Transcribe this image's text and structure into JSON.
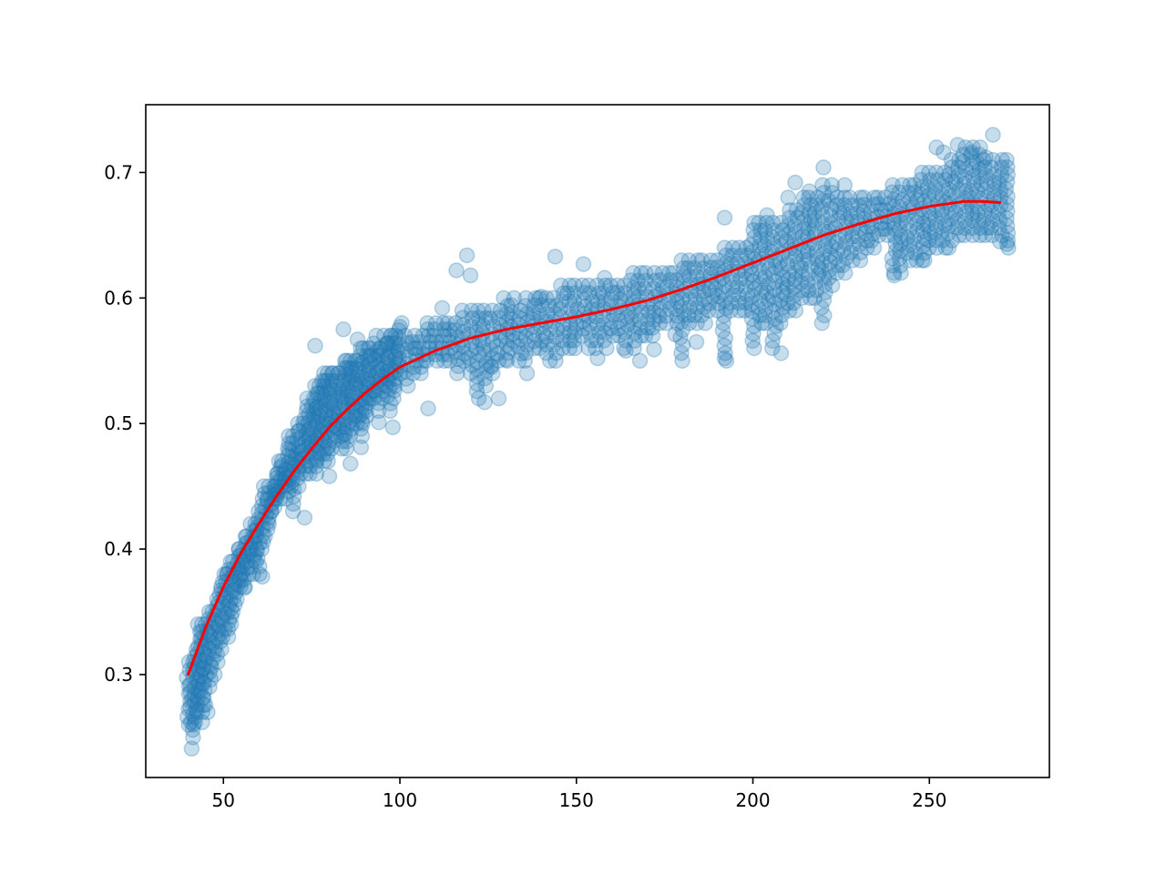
{
  "chart_data": {
    "type": "scatter",
    "title": "",
    "xlabel": "",
    "ylabel": "",
    "xlim": [
      28,
      284
    ],
    "ylim": [
      0.218,
      0.754
    ],
    "xticks": [
      50,
      100,
      150,
      200,
      250
    ],
    "yticks": [
      0.3,
      0.4,
      0.5,
      0.6,
      0.7
    ],
    "xtick_labels": [
      "50",
      "100",
      "150",
      "200",
      "250"
    ],
    "ytick_labels": [
      "0.3",
      "0.4",
      "0.5",
      "0.6",
      "0.7"
    ],
    "grid": false,
    "legend": "none",
    "series": [
      {
        "kind": "scatter",
        "color": "#1f77b4",
        "alpha": 0.25,
        "x_columns": [
          40,
          41,
          42,
          43,
          44,
          45,
          46,
          47,
          48,
          49,
          50,
          51,
          52,
          53,
          54,
          55,
          56,
          57,
          58,
          59,
          60,
          61,
          62,
          63,
          64,
          65,
          66,
          67,
          68,
          69,
          70,
          71,
          72,
          73,
          74,
          75,
          76,
          77,
          78,
          79,
          80,
          81,
          82,
          83,
          84,
          85,
          86,
          87,
          88,
          89,
          90,
          91,
          92,
          93,
          94,
          95,
          96,
          97,
          98,
          99,
          100,
          102,
          104,
          106,
          108,
          110,
          112,
          114,
          116,
          118,
          120,
          122,
          124,
          126,
          128,
          130,
          132,
          134,
          136,
          138,
          140,
          142,
          144,
          146,
          148,
          150,
          152,
          154,
          156,
          158,
          160,
          162,
          164,
          166,
          168,
          170,
          172,
          174,
          176,
          178,
          180,
          182,
          184,
          186,
          188,
          190,
          192,
          194,
          196,
          198,
          200,
          202,
          204,
          206,
          208,
          210,
          212,
          214,
          216,
          218,
          220,
          222,
          224,
          226,
          228,
          230,
          232,
          234,
          236,
          238,
          240,
          242,
          244,
          246,
          248,
          250,
          252,
          254,
          256,
          258,
          260,
          262,
          264,
          266,
          268,
          270,
          272
        ],
        "y_low": [
          0.26,
          0.25,
          0.26,
          0.27,
          0.27,
          0.27,
          0.29,
          0.3,
          0.31,
          0.32,
          0.33,
          0.33,
          0.34,
          0.35,
          0.36,
          0.37,
          0.37,
          0.38,
          0.38,
          0.39,
          0.38,
          0.4,
          0.41,
          0.42,
          0.43,
          0.44,
          0.44,
          0.45,
          0.44,
          0.45,
          0.43,
          0.45,
          0.46,
          0.46,
          0.47,
          0.46,
          0.46,
          0.47,
          0.47,
          0.48,
          0.47,
          0.48,
          0.49,
          0.49,
          0.48,
          0.48,
          0.49,
          0.5,
          0.5,
          0.49,
          0.5,
          0.51,
          0.52,
          0.52,
          0.51,
          0.52,
          0.53,
          0.51,
          0.52,
          0.53,
          0.54,
          0.53,
          0.54,
          0.54,
          0.55,
          0.55,
          0.55,
          0.55,
          0.54,
          0.55,
          0.54,
          0.52,
          0.53,
          0.54,
          0.55,
          0.55,
          0.56,
          0.55,
          0.55,
          0.56,
          0.56,
          0.55,
          0.55,
          0.56,
          0.56,
          0.56,
          0.57,
          0.56,
          0.56,
          0.56,
          0.57,
          0.57,
          0.56,
          0.56,
          0.57,
          0.57,
          0.57,
          0.58,
          0.58,
          0.58,
          0.55,
          0.58,
          0.58,
          0.58,
          0.59,
          0.59,
          0.55,
          0.59,
          0.59,
          0.59,
          0.56,
          0.58,
          0.58,
          0.56,
          0.58,
          0.59,
          0.59,
          0.6,
          0.6,
          0.6,
          0.58,
          0.61,
          0.62,
          0.62,
          0.63,
          0.63,
          0.64,
          0.64,
          0.65,
          0.65,
          0.62,
          0.62,
          0.63,
          0.63,
          0.63,
          0.64,
          0.64,
          0.64,
          0.64,
          0.65,
          0.65,
          0.65,
          0.65,
          0.65,
          0.65,
          0.65,
          0.64
        ],
        "y_high": [
          0.31,
          0.31,
          0.32,
          0.34,
          0.34,
          0.34,
          0.35,
          0.35,
          0.36,
          0.37,
          0.38,
          0.38,
          0.39,
          0.39,
          0.4,
          0.4,
          0.41,
          0.41,
          0.42,
          0.42,
          0.43,
          0.44,
          0.45,
          0.45,
          0.45,
          0.46,
          0.47,
          0.47,
          0.48,
          0.49,
          0.49,
          0.5,
          0.5,
          0.51,
          0.52,
          0.52,
          0.53,
          0.53,
          0.53,
          0.54,
          0.54,
          0.54,
          0.54,
          0.54,
          0.55,
          0.55,
          0.55,
          0.55,
          0.55,
          0.56,
          0.56,
          0.56,
          0.56,
          0.57,
          0.56,
          0.56,
          0.57,
          0.57,
          0.57,
          0.57,
          0.58,
          0.57,
          0.57,
          0.57,
          0.58,
          0.58,
          0.58,
          0.58,
          0.58,
          0.59,
          0.59,
          0.59,
          0.59,
          0.59,
          0.59,
          0.6,
          0.6,
          0.59,
          0.6,
          0.6,
          0.6,
          0.6,
          0.6,
          0.61,
          0.61,
          0.61,
          0.61,
          0.61,
          0.61,
          0.61,
          0.61,
          0.61,
          0.61,
          0.62,
          0.62,
          0.62,
          0.62,
          0.62,
          0.62,
          0.62,
          0.63,
          0.63,
          0.63,
          0.63,
          0.63,
          0.63,
          0.64,
          0.64,
          0.64,
          0.64,
          0.66,
          0.66,
          0.66,
          0.66,
          0.66,
          0.67,
          0.67,
          0.68,
          0.68,
          0.68,
          0.69,
          0.69,
          0.68,
          0.68,
          0.68,
          0.68,
          0.68,
          0.68,
          0.68,
          0.68,
          0.69,
          0.69,
          0.69,
          0.69,
          0.7,
          0.7,
          0.7,
          0.7,
          0.71,
          0.71,
          0.72,
          0.72,
          0.72,
          0.71,
          0.71,
          0.71,
          0.71
        ],
        "outliers": [
          [
            41,
            0.241
          ],
          [
            42,
            0.262
          ],
          [
            44,
            0.262
          ],
          [
            51,
            0.38
          ],
          [
            56,
            0.369
          ],
          [
            61,
            0.378
          ],
          [
            73,
            0.425
          ],
          [
            76,
            0.562
          ],
          [
            78,
            0.534
          ],
          [
            80,
            0.458
          ],
          [
            81,
            0.54
          ],
          [
            84,
            0.575
          ],
          [
            86,
            0.468
          ],
          [
            88,
            0.567
          ],
          [
            89,
            0.481
          ],
          [
            94,
            0.501
          ],
          [
            96,
            0.563
          ],
          [
            98,
            0.497
          ],
          [
            100,
            0.577
          ],
          [
            104,
            0.56
          ],
          [
            108,
            0.512
          ],
          [
            112,
            0.592
          ],
          [
            116,
            0.622
          ],
          [
            119,
            0.634
          ],
          [
            120,
            0.618
          ],
          [
            124,
            0.517
          ],
          [
            126,
            0.545
          ],
          [
            128,
            0.52
          ],
          [
            130,
            0.551
          ],
          [
            136,
            0.54
          ],
          [
            140,
            0.601
          ],
          [
            144,
            0.633
          ],
          [
            152,
            0.627
          ],
          [
            156,
            0.552
          ],
          [
            158,
            0.616
          ],
          [
            164,
            0.558
          ],
          [
            168,
            0.55
          ],
          [
            172,
            0.559
          ],
          [
            178,
            0.571
          ],
          [
            184,
            0.565
          ],
          [
            192,
            0.664
          ],
          [
            192,
            0.552
          ],
          [
            204,
            0.666
          ],
          [
            208,
            0.556
          ],
          [
            210,
            0.68
          ],
          [
            212,
            0.692
          ],
          [
            216,
            0.685
          ],
          [
            220,
            0.704
          ],
          [
            226,
            0.69
          ],
          [
            240,
            0.618
          ],
          [
            248,
            0.63
          ],
          [
            252,
            0.72
          ],
          [
            254,
            0.716
          ],
          [
            258,
            0.722
          ],
          [
            262,
            0.716
          ],
          [
            266,
            0.712
          ],
          [
            268,
            0.73
          ],
          [
            270,
            0.645
          ],
          [
            272,
            0.643
          ]
        ]
      },
      {
        "kind": "line",
        "color": "#ff0000",
        "x": [
          40,
          45,
          50,
          55,
          60,
          65,
          70,
          75,
          80,
          85,
          90,
          95,
          100,
          110,
          120,
          130,
          140,
          150,
          160,
          170,
          180,
          190,
          200,
          210,
          220,
          230,
          240,
          250,
          260,
          265,
          270
        ],
        "y": [
          0.3,
          0.338,
          0.37,
          0.397,
          0.42,
          0.442,
          0.462,
          0.48,
          0.497,
          0.511,
          0.524,
          0.535,
          0.545,
          0.558,
          0.568,
          0.575,
          0.58,
          0.585,
          0.591,
          0.598,
          0.607,
          0.617,
          0.628,
          0.639,
          0.65,
          0.659,
          0.667,
          0.673,
          0.677,
          0.677,
          0.676
        ]
      }
    ]
  }
}
